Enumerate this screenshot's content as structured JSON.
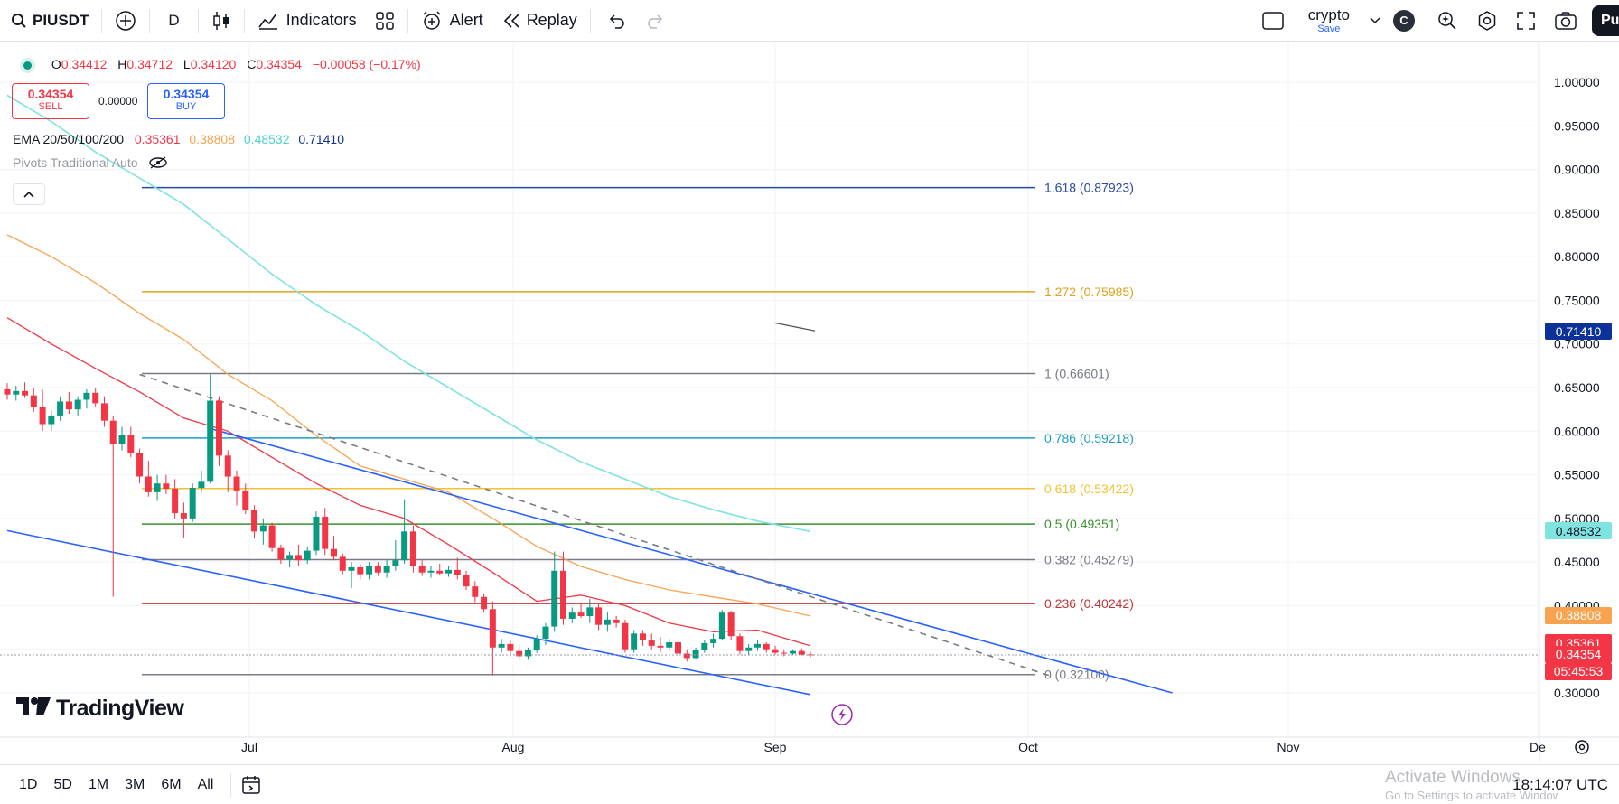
{
  "toolbar": {
    "symbol": "PIUSDT",
    "interval": "D",
    "indicators_label": "Indicators",
    "alert_label": "Alert",
    "replay_label": "Replay",
    "layout_name": "crypto",
    "save_label": "Save",
    "avatar_letter": "C",
    "publish_label": "Pu"
  },
  "legend": {
    "o_label": "O",
    "o_value": "0.34412",
    "h_label": "H",
    "h_value": "0.34712",
    "l_label": "L",
    "l_value": "0.34120",
    "c_label": "C",
    "c_value": "0.34354",
    "change": "−0.00058 (−0.17%)",
    "sell_price": "0.34354",
    "sell_label": "SELL",
    "spread": "0.00000",
    "buy_price": "0.34354",
    "buy_label": "BUY",
    "ema_label": "EMA 20/50/100/200",
    "ema20": "0.35361",
    "ema50": "0.38808",
    "ema100": "0.48532",
    "ema200": "0.71410",
    "pivots_label": "Pivots Traditional Auto"
  },
  "colors": {
    "ema20": "#f23645",
    "ema50": "#f7a350",
    "ema100": "#7fe3e0",
    "ema200": "#0c3299",
    "up": "#089981",
    "down": "#f23645",
    "channel": "#2962ff"
  },
  "fib_levels": [
    {
      "text": "1.618 (0.87923)",
      "value": 0.87923,
      "color": "#2849a4"
    },
    {
      "text": "1.272 (0.75985)",
      "value": 0.75985,
      "color": "#e0a21b"
    },
    {
      "text": "1 (0.66601)",
      "value": 0.66601,
      "color": "#787b86"
    },
    {
      "text": "0.786 (0.59218)",
      "value": 0.59218,
      "color": "#1e9fc2"
    },
    {
      "text": "0.618 (0.53422)",
      "value": 0.53422,
      "color": "#f1c232"
    },
    {
      "text": "0.5 (0.49351)",
      "value": 0.49351,
      "color": "#3c8f2c"
    },
    {
      "text": "0.382 (0.45279)",
      "value": 0.45279,
      "color": "#787b86"
    },
    {
      "text": "0.236 (0.40242)",
      "value": 0.40242,
      "color": "#c33535"
    },
    {
      "text": "0 (0.32100)",
      "value": 0.321,
      "color": "#787b86"
    }
  ],
  "price_axis": {
    "ticks": [
      "1.00000",
      "0.95000",
      "0.90000",
      "0.85000",
      "0.80000",
      "0.75000",
      "0.70000",
      "0.65000",
      "0.60000",
      "0.55000",
      "0.50000",
      "0.45000",
      "0.40000",
      "0.35000",
      "0.30000"
    ],
    "tags": [
      {
        "text": "0.71410",
        "value": 0.7141,
        "color": "#0c3299"
      },
      {
        "text": "0.48532",
        "value": 0.48532,
        "color": "#7fe3e0"
      },
      {
        "text": "0.38808",
        "value": 0.38808,
        "color": "#f7a350"
      },
      {
        "text": "0.35361",
        "value": 0.35361,
        "color": "#f23645"
      },
      {
        "text": "0.34354",
        "value": 0.34354,
        "color": "#f23645"
      }
    ],
    "countdown": "05:45:53"
  },
  "time_axis": [
    "Jul",
    "Aug",
    "Sep",
    "Oct",
    "Nov",
    "De"
  ],
  "bottombar": {
    "timeframes": [
      "1D",
      "5D",
      "1M",
      "3M",
      "6M",
      "All"
    ],
    "clock": "18:14:07 UTC",
    "watermark_title": "Activate Windows",
    "watermark_sub": "Go to Settings to activate Windows."
  },
  "branding": {
    "logo_text": "TradingView"
  },
  "chart_data": {
    "type": "candlestick",
    "title": "PIUSDT · D",
    "y_range": [
      0.28,
      1.02
    ],
    "candles": [
      {
        "o": 0.648,
        "h": 0.655,
        "l": 0.636,
        "c": 0.642
      },
      {
        "o": 0.642,
        "h": 0.652,
        "l": 0.635,
        "c": 0.646
      },
      {
        "o": 0.646,
        "h": 0.656,
        "l": 0.638,
        "c": 0.641
      },
      {
        "o": 0.641,
        "h": 0.649,
        "l": 0.622,
        "c": 0.628
      },
      {
        "o": 0.628,
        "h": 0.648,
        "l": 0.6,
        "c": 0.608
      },
      {
        "o": 0.608,
        "h": 0.624,
        "l": 0.6,
        "c": 0.618
      },
      {
        "o": 0.618,
        "h": 0.64,
        "l": 0.612,
        "c": 0.634
      },
      {
        "o": 0.634,
        "h": 0.645,
        "l": 0.62,
        "c": 0.625
      },
      {
        "o": 0.625,
        "h": 0.64,
        "l": 0.618,
        "c": 0.636
      },
      {
        "o": 0.636,
        "h": 0.648,
        "l": 0.626,
        "c": 0.644
      },
      {
        "o": 0.644,
        "h": 0.65,
        "l": 0.628,
        "c": 0.632
      },
      {
        "o": 0.632,
        "h": 0.64,
        "l": 0.605,
        "c": 0.612
      },
      {
        "o": 0.612,
        "h": 0.618,
        "l": 0.41,
        "c": 0.585
      },
      {
        "o": 0.585,
        "h": 0.605,
        "l": 0.578,
        "c": 0.596
      },
      {
        "o": 0.596,
        "h": 0.605,
        "l": 0.57,
        "c": 0.575
      },
      {
        "o": 0.575,
        "h": 0.58,
        "l": 0.54,
        "c": 0.548
      },
      {
        "o": 0.548,
        "h": 0.566,
        "l": 0.525,
        "c": 0.53
      },
      {
        "o": 0.53,
        "h": 0.55,
        "l": 0.52,
        "c": 0.54
      },
      {
        "o": 0.54,
        "h": 0.55,
        "l": 0.528,
        "c": 0.534
      },
      {
        "o": 0.534,
        "h": 0.545,
        "l": 0.5,
        "c": 0.506
      },
      {
        "o": 0.506,
        "h": 0.518,
        "l": 0.478,
        "c": 0.5
      },
      {
        "o": 0.5,
        "h": 0.54,
        "l": 0.496,
        "c": 0.535
      },
      {
        "o": 0.535,
        "h": 0.555,
        "l": 0.53,
        "c": 0.542
      },
      {
        "o": 0.542,
        "h": 0.665,
        "l": 0.54,
        "c": 0.635
      },
      {
        "o": 0.635,
        "h": 0.64,
        "l": 0.56,
        "c": 0.572
      },
      {
        "o": 0.572,
        "h": 0.578,
        "l": 0.53,
        "c": 0.548
      },
      {
        "o": 0.548,
        "h": 0.555,
        "l": 0.515,
        "c": 0.532
      },
      {
        "o": 0.532,
        "h": 0.54,
        "l": 0.505,
        "c": 0.51
      },
      {
        "o": 0.51,
        "h": 0.515,
        "l": 0.478,
        "c": 0.485
      },
      {
        "o": 0.485,
        "h": 0.5,
        "l": 0.47,
        "c": 0.492
      },
      {
        "o": 0.492,
        "h": 0.495,
        "l": 0.462,
        "c": 0.466
      },
      {
        "o": 0.466,
        "h": 0.47,
        "l": 0.448,
        "c": 0.453
      },
      {
        "o": 0.453,
        "h": 0.462,
        "l": 0.444,
        "c": 0.458
      },
      {
        "o": 0.458,
        "h": 0.47,
        "l": 0.446,
        "c": 0.452
      },
      {
        "o": 0.452,
        "h": 0.468,
        "l": 0.448,
        "c": 0.463
      },
      {
        "o": 0.463,
        "h": 0.508,
        "l": 0.458,
        "c": 0.502
      },
      {
        "o": 0.502,
        "h": 0.512,
        "l": 0.458,
        "c": 0.465
      },
      {
        "o": 0.465,
        "h": 0.48,
        "l": 0.452,
        "c": 0.456
      },
      {
        "o": 0.456,
        "h": 0.46,
        "l": 0.436,
        "c": 0.44
      },
      {
        "o": 0.44,
        "h": 0.45,
        "l": 0.42,
        "c": 0.444
      },
      {
        "o": 0.444,
        "h": 0.448,
        "l": 0.43,
        "c": 0.436
      },
      {
        "o": 0.436,
        "h": 0.45,
        "l": 0.43,
        "c": 0.445
      },
      {
        "o": 0.445,
        "h": 0.45,
        "l": 0.434,
        "c": 0.438
      },
      {
        "o": 0.438,
        "h": 0.452,
        "l": 0.432,
        "c": 0.446
      },
      {
        "o": 0.446,
        "h": 0.475,
        "l": 0.44,
        "c": 0.452
      },
      {
        "o": 0.452,
        "h": 0.522,
        "l": 0.448,
        "c": 0.485
      },
      {
        "o": 0.485,
        "h": 0.492,
        "l": 0.438,
        "c": 0.445
      },
      {
        "o": 0.445,
        "h": 0.452,
        "l": 0.434,
        "c": 0.438
      },
      {
        "o": 0.438,
        "h": 0.445,
        "l": 0.432,
        "c": 0.44
      },
      {
        "o": 0.44,
        "h": 0.448,
        "l": 0.435,
        "c": 0.437
      },
      {
        "o": 0.437,
        "h": 0.445,
        "l": 0.433,
        "c": 0.441
      },
      {
        "o": 0.441,
        "h": 0.455,
        "l": 0.43,
        "c": 0.435
      },
      {
        "o": 0.435,
        "h": 0.44,
        "l": 0.418,
        "c": 0.422
      },
      {
        "o": 0.422,
        "h": 0.428,
        "l": 0.404,
        "c": 0.41
      },
      {
        "o": 0.41,
        "h": 0.414,
        "l": 0.392,
        "c": 0.396
      },
      {
        "o": 0.396,
        "h": 0.405,
        "l": 0.32,
        "c": 0.352
      },
      {
        "o": 0.352,
        "h": 0.362,
        "l": 0.346,
        "c": 0.356
      },
      {
        "o": 0.356,
        "h": 0.36,
        "l": 0.342,
        "c": 0.348
      },
      {
        "o": 0.348,
        "h": 0.355,
        "l": 0.338,
        "c": 0.342
      },
      {
        "o": 0.342,
        "h": 0.352,
        "l": 0.338,
        "c": 0.349
      },
      {
        "o": 0.349,
        "h": 0.366,
        "l": 0.346,
        "c": 0.362
      },
      {
        "o": 0.362,
        "h": 0.38,
        "l": 0.355,
        "c": 0.376
      },
      {
        "o": 0.376,
        "h": 0.462,
        "l": 0.37,
        "c": 0.44
      },
      {
        "o": 0.44,
        "h": 0.462,
        "l": 0.378,
        "c": 0.385
      },
      {
        "o": 0.385,
        "h": 0.398,
        "l": 0.38,
        "c": 0.392
      },
      {
        "o": 0.392,
        "h": 0.402,
        "l": 0.386,
        "c": 0.388
      },
      {
        "o": 0.388,
        "h": 0.408,
        "l": 0.38,
        "c": 0.398
      },
      {
        "o": 0.398,
        "h": 0.402,
        "l": 0.372,
        "c": 0.378
      },
      {
        "o": 0.378,
        "h": 0.392,
        "l": 0.37,
        "c": 0.384
      },
      {
        "o": 0.384,
        "h": 0.388,
        "l": 0.375,
        "c": 0.38
      },
      {
        "o": 0.38,
        "h": 0.384,
        "l": 0.346,
        "c": 0.35
      },
      {
        "o": 0.35,
        "h": 0.372,
        "l": 0.346,
        "c": 0.368
      },
      {
        "o": 0.368,
        "h": 0.372,
        "l": 0.354,
        "c": 0.36
      },
      {
        "o": 0.36,
        "h": 0.368,
        "l": 0.35,
        "c": 0.354
      },
      {
        "o": 0.354,
        "h": 0.364,
        "l": 0.346,
        "c": 0.352
      },
      {
        "o": 0.352,
        "h": 0.362,
        "l": 0.348,
        "c": 0.358
      },
      {
        "o": 0.358,
        "h": 0.364,
        "l": 0.34,
        "c": 0.345
      },
      {
        "o": 0.345,
        "h": 0.35,
        "l": 0.336,
        "c": 0.34
      },
      {
        "o": 0.34,
        "h": 0.352,
        "l": 0.338,
        "c": 0.349
      },
      {
        "o": 0.349,
        "h": 0.36,
        "l": 0.346,
        "c": 0.357
      },
      {
        "o": 0.357,
        "h": 0.368,
        "l": 0.352,
        "c": 0.362
      },
      {
        "o": 0.362,
        "h": 0.395,
        "l": 0.36,
        "c": 0.392
      },
      {
        "o": 0.392,
        "h": 0.394,
        "l": 0.36,
        "c": 0.365
      },
      {
        "o": 0.365,
        "h": 0.368,
        "l": 0.344,
        "c": 0.348
      },
      {
        "o": 0.348,
        "h": 0.356,
        "l": 0.343,
        "c": 0.352
      },
      {
        "o": 0.352,
        "h": 0.36,
        "l": 0.348,
        "c": 0.356
      },
      {
        "o": 0.356,
        "h": 0.358,
        "l": 0.346,
        "c": 0.35
      },
      {
        "o": 0.35,
        "h": 0.354,
        "l": 0.344,
        "c": 0.346
      },
      {
        "o": 0.346,
        "h": 0.35,
        "l": 0.342,
        "c": 0.345
      },
      {
        "o": 0.345,
        "h": 0.35,
        "l": 0.343,
        "c": 0.348
      },
      {
        "o": 0.348,
        "h": 0.351,
        "l": 0.343,
        "c": 0.344
      },
      {
        "o": 0.3441,
        "h": 0.3471,
        "l": 0.3412,
        "c": 0.3435
      }
    ],
    "ema20": [
      [
        0,
        0.73
      ],
      [
        5,
        0.7
      ],
      [
        10,
        0.672
      ],
      [
        15,
        0.645
      ],
      [
        20,
        0.615
      ],
      [
        25,
        0.6
      ],
      [
        30,
        0.57
      ],
      [
        35,
        0.54
      ],
      [
        40,
        0.515
      ],
      [
        45,
        0.5
      ],
      [
        50,
        0.47
      ],
      [
        55,
        0.438
      ],
      [
        60,
        0.405
      ],
      [
        65,
        0.412
      ],
      [
        70,
        0.4
      ],
      [
        75,
        0.38
      ],
      [
        80,
        0.37
      ],
      [
        85,
        0.372
      ],
      [
        91,
        0.354
      ]
    ],
    "ema50": [
      [
        0,
        0.825
      ],
      [
        5,
        0.8
      ],
      [
        10,
        0.77
      ],
      [
        15,
        0.735
      ],
      [
        20,
        0.705
      ],
      [
        25,
        0.665
      ],
      [
        30,
        0.635
      ],
      [
        35,
        0.595
      ],
      [
        40,
        0.56
      ],
      [
        45,
        0.545
      ],
      [
        50,
        0.53
      ],
      [
        55,
        0.5
      ],
      [
        60,
        0.468
      ],
      [
        65,
        0.445
      ],
      [
        70,
        0.43
      ],
      [
        75,
        0.418
      ],
      [
        80,
        0.41
      ],
      [
        85,
        0.402
      ],
      [
        91,
        0.388
      ]
    ],
    "ema100": [
      [
        0,
        0.985
      ],
      [
        5,
        0.955
      ],
      [
        10,
        0.92
      ],
      [
        15,
        0.89
      ],
      [
        20,
        0.86
      ],
      [
        25,
        0.82
      ],
      [
        30,
        0.78
      ],
      [
        35,
        0.745
      ],
      [
        40,
        0.715
      ],
      [
        45,
        0.68
      ],
      [
        50,
        0.65
      ],
      [
        55,
        0.62
      ],
      [
        60,
        0.59
      ],
      [
        65,
        0.565
      ],
      [
        70,
        0.545
      ],
      [
        75,
        0.525
      ],
      [
        80,
        0.51
      ],
      [
        85,
        0.497
      ],
      [
        91,
        0.485
      ]
    ],
    "ema200_segment": [
      [
        91,
        0.715
      ],
      [
        89,
        0.718
      ]
    ],
    "channel_upper": [
      [
        23,
        0.603
      ],
      [
        132,
        0.3
      ]
    ],
    "channel_lower": [
      [
        0,
        0.486
      ],
      [
        91,
        0.298
      ]
    ],
    "dashed_trend": [
      [
        15,
        0.665
      ],
      [
        118,
        0.32
      ]
    ]
  }
}
